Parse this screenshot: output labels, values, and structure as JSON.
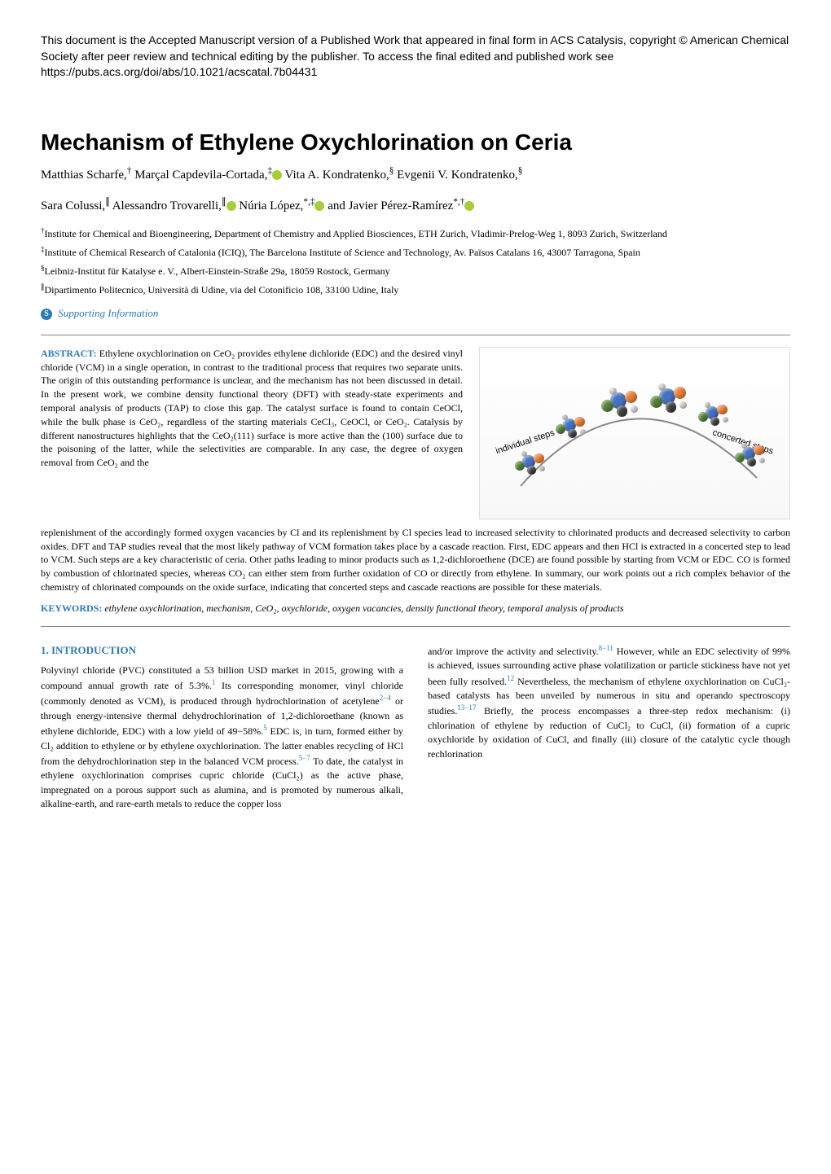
{
  "preamble": "This document is the Accepted Manuscript version of a Published Work that appeared in final form in ACS Catalysis, copyright © American Chemical Society after peer review and technical editing by the publisher. To access the final edited and published work see https://pubs.acs.org/doi/abs/10.1021/acscatal.7b04431",
  "title": "Mechanism of Ethylene Oxychlorination on Ceria",
  "authors_line1_parts": [
    {
      "name": "Matthias Scharfe,",
      "sup": "†"
    },
    {
      "name": " Marçal Capdevila-Cortada,",
      "sup": "‡",
      "orcid": true
    },
    {
      "name": " Vita A. Kondratenko,",
      "sup": "§"
    },
    {
      "name": " Evgenii V. Kondratenko,",
      "sup": "§"
    }
  ],
  "authors_line2_parts": [
    {
      "name": "Sara Colussi,",
      "sup": "∥"
    },
    {
      "name": " Alessandro Trovarelli,",
      "sup": "∥",
      "orcid": true
    },
    {
      "name": " Núria López,",
      "sup": "*,‡",
      "orcid": true
    },
    {
      "name": " and Javier Pérez-Ramírez",
      "sup": "*,†",
      "orcid": true
    }
  ],
  "affiliations": [
    {
      "marker": "†",
      "text": "Institute for Chemical and Bioengineering, Department of Chemistry and Applied Biosciences, ETH Zurich, Vladimir-Prelog-Weg 1, 8093 Zurich, Switzerland"
    },
    {
      "marker": "‡",
      "text": "Institute of Chemical Research of Catalonia (ICIQ), The Barcelona Institute of Science and Technology, Av. Països Catalans 16, 43007 Tarragona, Spain"
    },
    {
      "marker": "§",
      "text": "Leibniz-Institut für Katalyse e. V., Albert-Einstein-Straße 29a, 18059 Rostock, Germany"
    },
    {
      "marker": "∥",
      "text": "Dipartimento Politecnico, Università di Udine, via del Cotonificio 108, 33100 Udine, Italy"
    }
  ],
  "supporting_label": "Supporting Information",
  "supporting_badge": "S",
  "abstract_label": "ABSTRACT:",
  "abstract_left": "Ethylene oxychlorination on CeO₂ provides ethylene dichloride (EDC) and the desired vinyl chloride (VCM) in a single operation, in contrast to the traditional process that requires two separate units. The origin of this outstanding performance is unclear, and the mechanism has not been discussed in detail. In the present work, we combine density functional theory (DFT) with steady-state experiments and temporal analysis of products (TAP) to close this gap. The catalyst surface is found to contain CeOCl, while the bulk phase is CeO₂, regardless of the starting materials CeCl₃, CeOCl, or CeO₂. Catalysis by different nanostructures highlights that the CeO₂(111) surface is more active than the (100) surface due to the poisoning of the latter, while the selectivities are comparable. In any case, the degree of oxygen removal from CeO₂ and the",
  "abstract_continued": "replenishment of the accordingly formed oxygen vacancies by Cl and its replenishment by Cl species lead to increased selectivity to chlorinated products and decreased selectivity to carbon oxides. DFT and TAP studies reveal that the most likely pathway of VCM formation takes place by a cascade reaction. First, EDC appears and then HCl is extracted in a concerted step to lead to VCM. Such steps are a key characteristic of ceria. Other paths leading to minor products such as 1,2-dichloroethene (DCE) are found possible by starting from VCM or EDC. CO is formed by combustion of chlorinated species, whereas CO₂ can either stem from further oxidation of CO or directly from ethylene. In summary, our work points out a rich complex behavior of the chemistry of chlorinated compounds on the oxide surface, indicating that concerted steps and cascade reactions are possible for these materials.",
  "figure": {
    "label_left": "individual steps",
    "label_right": "concerted steps",
    "colors": {
      "ce": "#4472c4",
      "o": "#ed7d31",
      "cl": "#548235",
      "c": "#404040",
      "h": "#d9d9d9"
    }
  },
  "keywords_label": "KEYWORDS:",
  "keywords": "ethylene oxychlorination, mechanism, CeO₂, oxychloride, oxygen vacancies, density functional theory, temporal analysis of products",
  "section1_heading": "1. INTRODUCTION",
  "col1_text_pre": "Polyvinyl chloride (PVC) constituted a 53 billion USD market in 2015, growing with a compound annual growth rate of 5.3%.",
  "col1_ref1": "1",
  "col1_text_mid1": " Its corresponding monomer, vinyl chloride (commonly denoted as VCM), is produced through hydrochlorination of acetylene",
  "col1_ref2": "2−4",
  "col1_text_mid2": " or through energy-intensive thermal dehydrochlorination of 1,2-dichloroethane (known as ethylene dichloride, EDC) with a low yield of 49−58%.",
  "col1_ref3": "5",
  "col1_text_mid3": " EDC is, in turn, formed either by Cl₂ addition to ethylene or by ethylene oxychlorination. The latter enables recycling of HCl from the dehydrochlorination step in the balanced VCM process.",
  "col1_ref4": "5−7",
  "col1_text_end": " To date, the catalyst in ethylene oxychlorination comprises cupric chloride (CuCl₂) as the active phase, impregnated on a porous support such as alumina, and is promoted by numerous alkali, alkaline-earth, and rare-earth metals to reduce the copper loss",
  "col2_text_pre": "and/or improve the activity and selectivity.",
  "col2_ref1": "8−11",
  "col2_text_mid1": " However, while an EDC selectivity of 99% is achieved, issues surrounding active phase volatilization or particle stickiness have not yet been fully resolved.",
  "col2_ref2": "12",
  "col2_text_mid2": " Nevertheless, the mechanism of ethylene oxychlorination on CuCl₂-based catalysts has been unveiled by numerous in situ and operando spectroscopy studies.",
  "col2_ref3": "13−17",
  "col2_text_end": " Briefly, the process encompasses a three-step redox mechanism: (i) chlorination of ethylene by reduction of CuCl₂ to CuCl, (ii) formation of a cupric oxychloride by oxidation of CuCl, and finally (iii) closure of the catalytic cycle though rechlorination"
}
